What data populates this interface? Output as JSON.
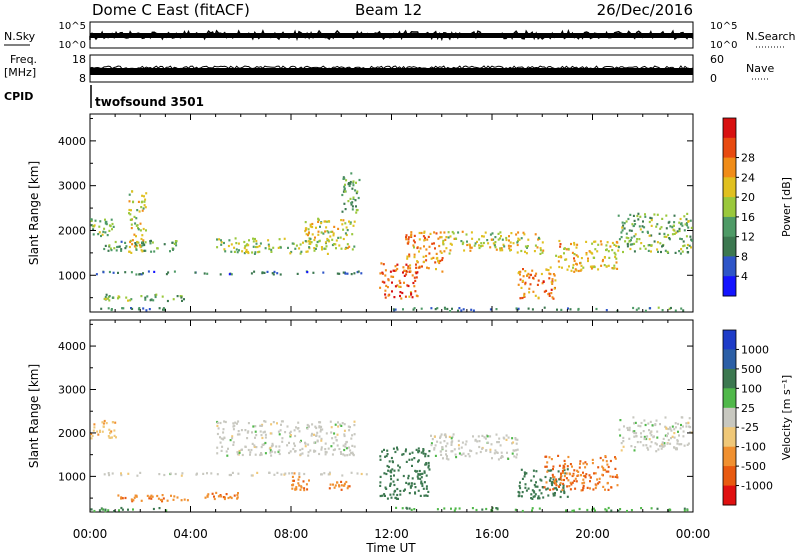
{
  "header": {
    "station": "Dome C East (fitACF)",
    "beam": "Beam 12",
    "date": "26/Dec/2016"
  },
  "strips": {
    "nsky": {
      "label": "N.Sky",
      "ticks": [
        "10^5",
        "10^0"
      ]
    },
    "nsearch": {
      "label": "N.Search",
      "ticks": [
        "10^5",
        "10^0"
      ]
    },
    "freq": {
      "label_line1": "Freq.",
      "label_line2": "[MHz]",
      "ticks": [
        "18",
        "8"
      ]
    },
    "nave": {
      "label": "Nave",
      "ticks": [
        "60",
        "0"
      ]
    },
    "cpid": {
      "label": "CPID",
      "value": "twofsound 3501"
    }
  },
  "chart_data": [
    {
      "type": "heatmap",
      "panel": "power",
      "ylabel": "Slant Range [km]",
      "xlabel": "",
      "x_ticks": [
        "00:00",
        "04:00",
        "08:00",
        "12:00",
        "16:00",
        "20:00",
        "00:00"
      ],
      "y_ticks": [
        "1000",
        "2000",
        "3000",
        "4000"
      ],
      "ylim": [
        180,
        4600
      ],
      "colorbar": {
        "label": "Power [dB]",
        "ticks": [
          "4",
          "8",
          "12",
          "16",
          "20",
          "24",
          "28"
        ],
        "colors": [
          "#1414ff",
          "#2e55c8",
          "#3c7850",
          "#4e9a66",
          "#9ac83c",
          "#e0c020",
          "#f08c18",
          "#e84a10",
          "#d81010"
        ]
      },
      "regions": [
        {
          "t0": 0.0,
          "t1": 3.0,
          "r0": 180,
          "r1": 300,
          "v": 10
        },
        {
          "t0": 0.5,
          "t1": 4.0,
          "r0": 450,
          "r1": 600,
          "v": 14
        },
        {
          "t0": 0.0,
          "t1": 11.0,
          "r0": 1040,
          "r1": 1110,
          "v": 8
        },
        {
          "t0": 0.0,
          "t1": 1.0,
          "r0": 1900,
          "r1": 2300,
          "v": 14
        },
        {
          "t0": 0.5,
          "t1": 3.5,
          "r0": 1550,
          "r1": 1800,
          "v": 12
        },
        {
          "t0": 1.5,
          "t1": 2.2,
          "r0": 1500,
          "r1": 2900,
          "v": 18
        },
        {
          "t0": 5.0,
          "t1": 9.5,
          "r0": 1500,
          "r1": 1850,
          "v": 16
        },
        {
          "t0": 8.5,
          "t1": 10.5,
          "r0": 1600,
          "r1": 2300,
          "v": 18
        },
        {
          "t0": 10.0,
          "t1": 10.7,
          "r0": 2400,
          "r1": 3300,
          "v": 12
        },
        {
          "t0": 11.5,
          "t1": 13.0,
          "r0": 500,
          "r1": 1300,
          "v": 26
        },
        {
          "t0": 12.5,
          "t1": 14.0,
          "r0": 1100,
          "r1": 2000,
          "v": 22
        },
        {
          "t0": 14.0,
          "t1": 18.0,
          "r0": 1500,
          "r1": 2000,
          "v": 18
        },
        {
          "t0": 17.0,
          "t1": 18.5,
          "r0": 500,
          "r1": 1200,
          "v": 24
        },
        {
          "t0": 18.5,
          "t1": 21.0,
          "r0": 1100,
          "r1": 1800,
          "v": 20
        },
        {
          "t0": 21.0,
          "t1": 24.0,
          "r0": 1500,
          "r1": 2400,
          "v": 14
        },
        {
          "t0": 12.0,
          "t1": 24.0,
          "r0": 180,
          "r1": 300,
          "v": 10
        }
      ]
    },
    {
      "type": "heatmap",
      "panel": "velocity",
      "ylabel": "Slant Range [km]",
      "xlabel": "Time UT",
      "x_ticks": [
        "00:00",
        "04:00",
        "08:00",
        "12:00",
        "16:00",
        "20:00",
        "00:00"
      ],
      "y_ticks": [
        "1000",
        "2000",
        "3000",
        "4000"
      ],
      "ylim": [
        180,
        4600
      ],
      "colorbar": {
        "label": "Velocity [m s⁻¹]",
        "ticks": [
          "1000",
          "500",
          "100",
          "25",
          "-25",
          "-100",
          "-500",
          "-1000"
        ],
        "colors": [
          "#1e3cc8",
          "#2c5fa6",
          "#3c7850",
          "#50b84a",
          "#c8c8c0",
          "#f0c878",
          "#f09030",
          "#e85a10",
          "#e01010"
        ]
      },
      "regions": [
        {
          "t0": 0.0,
          "t1": 3.0,
          "r0": 180,
          "r1": 300,
          "v": 100
        },
        {
          "t0": 1.0,
          "t1": 4.0,
          "r0": 450,
          "r1": 600,
          "v": -400
        },
        {
          "t0": 4.5,
          "t1": 6.0,
          "r0": 500,
          "r1": 650,
          "v": -400
        },
        {
          "t0": 0.0,
          "t1": 11.0,
          "r0": 1040,
          "r1": 1110,
          "v": 0
        },
        {
          "t0": 0.0,
          "t1": 1.0,
          "r0": 1900,
          "r1": 2300,
          "v": -80
        },
        {
          "t0": 5.0,
          "t1": 10.5,
          "r0": 1500,
          "r1": 2300,
          "v": 0
        },
        {
          "t0": 8.0,
          "t1": 8.7,
          "r0": 700,
          "r1": 1100,
          "v": -400
        },
        {
          "t0": 9.5,
          "t1": 10.3,
          "r0": 700,
          "r1": 900,
          "v": -400
        },
        {
          "t0": 11.5,
          "t1": 13.5,
          "r0": 500,
          "r1": 1700,
          "v": 300
        },
        {
          "t0": 13.5,
          "t1": 17.0,
          "r0": 1400,
          "r1": 2000,
          "v": 0
        },
        {
          "t0": 17.0,
          "t1": 19.0,
          "r0": 500,
          "r1": 1200,
          "v": 300
        },
        {
          "t0": 18.0,
          "t1": 21.0,
          "r0": 700,
          "r1": 1500,
          "v": -500
        },
        {
          "t0": 21.0,
          "t1": 24.0,
          "r0": 1600,
          "r1": 2400,
          "v": 0
        },
        {
          "t0": 12.0,
          "t1": 24.0,
          "r0": 180,
          "r1": 300,
          "v": 80
        }
      ]
    }
  ]
}
